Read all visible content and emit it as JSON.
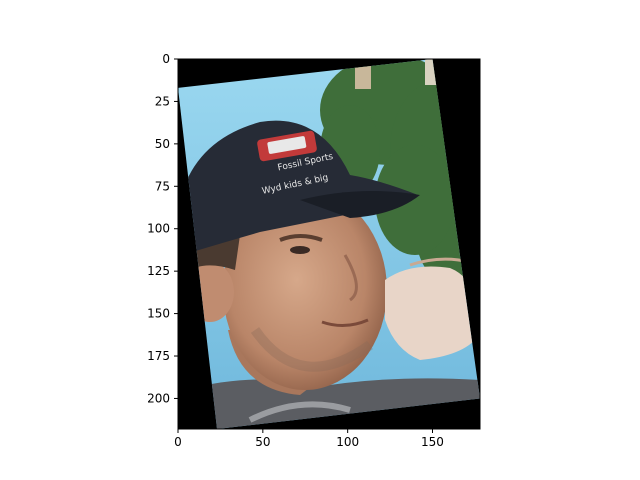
{
  "chart_data": {
    "type": "image",
    "title": "",
    "xlabel": "",
    "ylabel": "",
    "xlim": [
      0,
      178
    ],
    "ylim": [
      218,
      0
    ],
    "x_ticks": [
      0,
      50,
      100,
      150
    ],
    "y_ticks": [
      0,
      25,
      50,
      75,
      100,
      125,
      150,
      175,
      200
    ],
    "grid": false,
    "image": {
      "subject": "rotated photo of a man wearing a dark baseball cap, hand raised near his face, trees and sky behind",
      "cap_text": [
        "Fossil Sports",
        "Wyd kids & big"
      ],
      "rotation_direction": "clockwise",
      "background_fill": "#000000",
      "colors": {
        "sky": "#8fd0ea",
        "trees": "#3f6e3a",
        "cap": "#262b36",
        "skin": "#c49478",
        "shirt": "#5b5d62"
      }
    }
  }
}
